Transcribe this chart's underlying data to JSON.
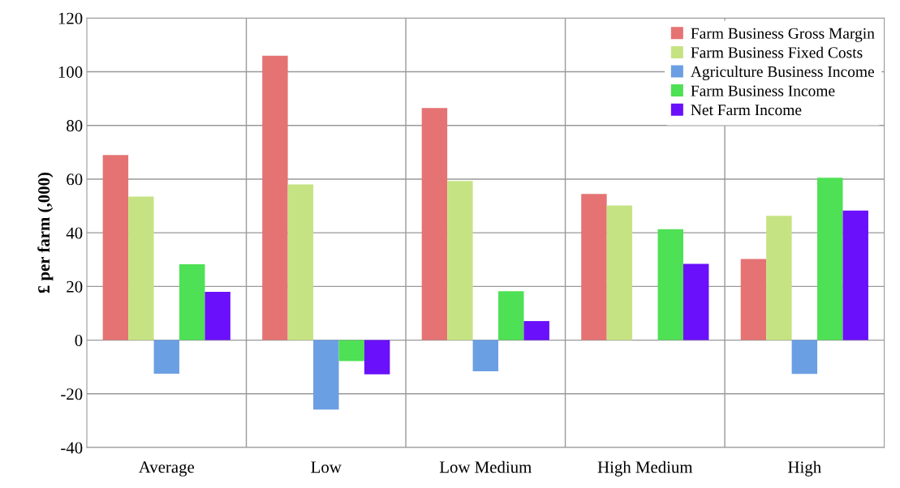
{
  "chart_data": {
    "type": "bar",
    "ylabel": "£ per farm (,000)",
    "categories": [
      "Average",
      "Low",
      "Low Medium",
      "High Medium",
      "High"
    ],
    "series": [
      {
        "name": "Farm Business Gross Margin",
        "color": "#e57373",
        "values": [
          69,
          106,
          86.5,
          54.5,
          30.2
        ]
      },
      {
        "name": "Farm Business Fixed Costs",
        "color": "#c6e383",
        "values": [
          53.5,
          58,
          59.3,
          50.2,
          46.3
        ]
      },
      {
        "name": "Agriculture Business Income",
        "color": "#6b9fe3",
        "values": [
          -12.5,
          -25.9,
          -11.6,
          null,
          -12.6
        ]
      },
      {
        "name": "Farm Business Income",
        "color": "#4ee055",
        "values": [
          28.3,
          -7.8,
          18.2,
          41.3,
          60.5
        ]
      },
      {
        "name": "Net Farm Income",
        "color": "#6a10fa",
        "values": [
          18,
          -12.7,
          7.1,
          28.4,
          48.3
        ]
      }
    ],
    "ylim": [
      -40,
      120
    ],
    "yticks": [
      -40,
      -20,
      0,
      20,
      40,
      60,
      80,
      100,
      120
    ],
    "grid": true,
    "legend": "top right"
  }
}
